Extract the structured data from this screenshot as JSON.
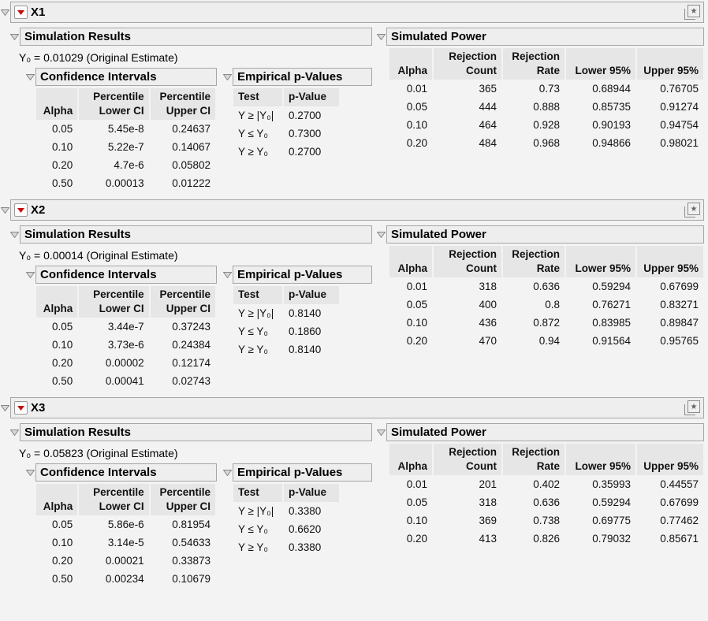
{
  "icons": {
    "star": "★"
  },
  "labels": {
    "simulation_results": "Simulation Results",
    "confidence_intervals": "Confidence Intervals",
    "empirical_p_values": "Empirical p-Values",
    "simulated_power": "Simulated Power"
  },
  "ci_columns": [
    "Alpha",
    "Percentile\nLower CI",
    "Percentile\nUpper CI"
  ],
  "emp_columns": [
    "Test",
    "p-Value"
  ],
  "power_columns": [
    "Alpha",
    "Rejection\nCount",
    "Rejection\nRate",
    "Lower 95%",
    "Upper 95%"
  ],
  "sections": [
    {
      "title": "X1",
      "original_estimate": "Y₀ = 0.01029 (Original Estimate)",
      "ci_rows": [
        [
          "0.05",
          "5.45e-8",
          "0.24637"
        ],
        [
          "0.10",
          "5.22e-7",
          "0.14067"
        ],
        [
          "0.20",
          "4.7e-6",
          "0.05802"
        ],
        [
          "0.50",
          "0.00013",
          "0.01222"
        ]
      ],
      "emp_rows": [
        [
          "Y ≥ |Y₀|",
          "0.2700"
        ],
        [
          "Y ≤ Y₀",
          "0.7300"
        ],
        [
          "Y ≥ Y₀",
          "0.2700"
        ]
      ],
      "power_rows": [
        [
          "0.01",
          "365",
          "0.73",
          "0.68944",
          "0.76705"
        ],
        [
          "0.05",
          "444",
          "0.888",
          "0.85735",
          "0.91274"
        ],
        [
          "0.10",
          "464",
          "0.928",
          "0.90193",
          "0.94754"
        ],
        [
          "0.20",
          "484",
          "0.968",
          "0.94866",
          "0.98021"
        ]
      ]
    },
    {
      "title": "X2",
      "original_estimate": "Y₀ = 0.00014 (Original Estimate)",
      "ci_rows": [
        [
          "0.05",
          "3.44e-7",
          "0.37243"
        ],
        [
          "0.10",
          "3.73e-6",
          "0.24384"
        ],
        [
          "0.20",
          "0.00002",
          "0.12174"
        ],
        [
          "0.50",
          "0.00041",
          "0.02743"
        ]
      ],
      "emp_rows": [
        [
          "Y ≥ |Y₀|",
          "0.8140"
        ],
        [
          "Y ≤ Y₀",
          "0.1860"
        ],
        [
          "Y ≥ Y₀",
          "0.8140"
        ]
      ],
      "power_rows": [
        [
          "0.01",
          "318",
          "0.636",
          "0.59294",
          "0.67699"
        ],
        [
          "0.05",
          "400",
          "0.8",
          "0.76271",
          "0.83271"
        ],
        [
          "0.10",
          "436",
          "0.872",
          "0.83985",
          "0.89847"
        ],
        [
          "0.20",
          "470",
          "0.94",
          "0.91564",
          "0.95765"
        ]
      ]
    },
    {
      "title": "X3",
      "original_estimate": "Y₀ = 0.05823 (Original Estimate)",
      "ci_rows": [
        [
          "0.05",
          "5.86e-6",
          "0.81954"
        ],
        [
          "0.10",
          "3.14e-5",
          "0.54633"
        ],
        [
          "0.20",
          "0.00021",
          "0.33873"
        ],
        [
          "0.50",
          "0.00234",
          "0.10679"
        ]
      ],
      "emp_rows": [
        [
          "Y ≥ |Y₀|",
          "0.3380"
        ],
        [
          "Y ≤ Y₀",
          "0.6620"
        ],
        [
          "Y ≥ Y₀",
          "0.3380"
        ]
      ],
      "power_rows": [
        [
          "0.01",
          "201",
          "0.402",
          "0.35993",
          "0.44557"
        ],
        [
          "0.05",
          "318",
          "0.636",
          "0.59294",
          "0.67699"
        ],
        [
          "0.10",
          "369",
          "0.738",
          "0.69775",
          "0.77462"
        ],
        [
          "0.20",
          "413",
          "0.826",
          "0.79032",
          "0.85671"
        ]
      ]
    }
  ]
}
